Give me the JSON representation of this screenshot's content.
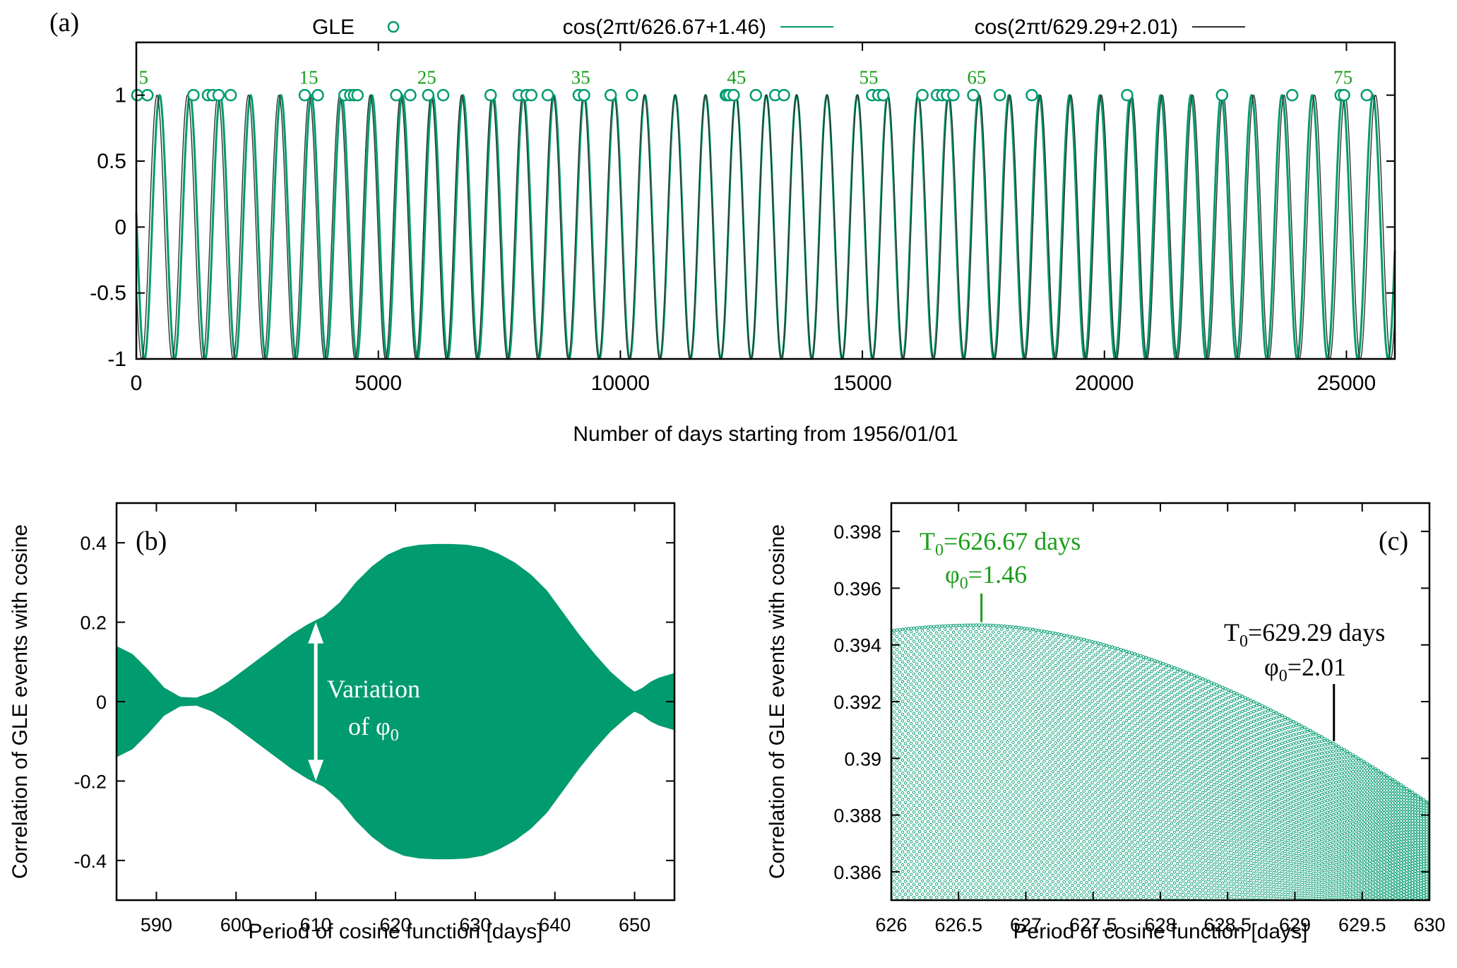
{
  "colors": {
    "green": "#009B6E",
    "dark": "#2f2f2f",
    "label_green": "#1a9e1a",
    "axis": "#000000"
  },
  "chart_data": [
    {
      "id": "a",
      "type": "line",
      "panel_label": "(a)",
      "xlabel": "Number of days starting from 1956/01/01",
      "ylabel": "",
      "xlim": [
        0,
        26000
      ],
      "ylim": [
        -1,
        1.4
      ],
      "xticks": [
        0,
        5000,
        10000,
        15000,
        20000,
        25000
      ],
      "xtick_labels": [
        "0",
        "5000",
        "10000",
        "15000",
        "20000",
        "25000"
      ],
      "yticks": [
        -1,
        -0.5,
        0,
        0.5,
        1
      ],
      "ytick_labels": [
        "-1",
        "-0.5",
        "0",
        "0.5",
        "1"
      ],
      "legend": [
        {
          "label": "GLE",
          "marker": "circle",
          "color": "#009B6E"
        },
        {
          "label": "cos(2πt/626.67+1.46)",
          "color": "#009B6E"
        },
        {
          "label": "cos(2πt/629.29+2.01)",
          "color": "#2f2f2f"
        }
      ],
      "series": [
        {
          "name": "cos(2πt/626.67+1.46)",
          "period": 626.67,
          "phase": 1.46
        },
        {
          "name": "cos(2πt/629.29+2.01)",
          "period": 629.29,
          "phase": 2.01
        }
      ],
      "gle_events": [
        20,
        230,
        1180,
        1480,
        1580,
        1700,
        1950,
        3480,
        3750,
        4300,
        4420,
        4500,
        4570,
        5370,
        5660,
        6030,
        6340,
        7320,
        7900,
        8060,
        8160,
        8500,
        9140,
        9250,
        9800,
        10240,
        12180,
        12200,
        12250,
        12340,
        12800,
        13200,
        13380,
        15200,
        15330,
        15430,
        16240,
        16540,
        16650,
        16750,
        16880,
        17290,
        17840,
        18500,
        20470,
        22430,
        23880,
        24880,
        24950,
        25420
      ],
      "event_labels": [
        {
          "text": "5",
          "x": 150
        },
        {
          "text": "15",
          "x": 3560
        },
        {
          "text": "25",
          "x": 6000
        },
        {
          "text": "35",
          "x": 9180
        },
        {
          "text": "45",
          "x": 12400
        },
        {
          "text": "55",
          "x": 15130
        },
        {
          "text": "65",
          "x": 17360
        },
        {
          "text": "75",
          "x": 24930
        }
      ]
    },
    {
      "id": "b",
      "type": "area",
      "panel_label": "(b)",
      "xlabel": "Period of cosine function [days]",
      "ylabel": "Correlation of GLE events with cosine",
      "xlim": [
        585,
        655
      ],
      "ylim": [
        -0.5,
        0.5
      ],
      "xticks": [
        590,
        600,
        610,
        620,
        630,
        640,
        650
      ],
      "xtick_labels": [
        "590",
        "600",
        "610",
        "620",
        "630",
        "640",
        "650"
      ],
      "yticks": [
        -0.4,
        -0.2,
        0,
        0.2,
        0.4
      ],
      "ytick_labels": [
        "-0.4",
        "-0.2",
        "0",
        "0.2",
        "0.4"
      ],
      "envelope_x": [
        585,
        587,
        589,
        591,
        593,
        595,
        597,
        599,
        601,
        603,
        605,
        607,
        609,
        610,
        611,
        613,
        615,
        617,
        619,
        621,
        623,
        625,
        627,
        629,
        631,
        633,
        635,
        637,
        639,
        641,
        643,
        645,
        647,
        649,
        650,
        651,
        652,
        653,
        655
      ],
      "envelope_y": [
        0.14,
        0.12,
        0.08,
        0.035,
        0.012,
        0.01,
        0.025,
        0.05,
        0.08,
        0.11,
        0.14,
        0.17,
        0.195,
        0.205,
        0.215,
        0.25,
        0.3,
        0.34,
        0.37,
        0.388,
        0.395,
        0.397,
        0.397,
        0.395,
        0.388,
        0.372,
        0.35,
        0.32,
        0.28,
        0.225,
        0.17,
        0.12,
        0.075,
        0.04,
        0.025,
        0.035,
        0.05,
        0.06,
        0.072
      ],
      "annotation": {
        "arrow_x": 610,
        "arrow_y1": 0.2,
        "arrow_y2": -0.2,
        "line1": "Variation",
        "line2": "of φ",
        "sub": "0"
      }
    },
    {
      "id": "c",
      "type": "scatter",
      "panel_label": "(c)",
      "xlabel": "Period of cosine function [days]",
      "ylabel": "Correlation of GLE events with cosine",
      "xlim": [
        626,
        630
      ],
      "ylim": [
        0.385,
        0.399
      ],
      "xticks": [
        626,
        626.5,
        627,
        627.5,
        628,
        628.5,
        629,
        629.5,
        630
      ],
      "xtick_labels": [
        "626",
        "626.5",
        "627",
        "627.5",
        "628",
        "628.5",
        "629",
        "629.5",
        "630"
      ],
      "yticks": [
        0.386,
        0.388,
        0.39,
        0.392,
        0.394,
        0.396,
        0.398
      ],
      "ytick_labels": [
        "0.386",
        "0.388",
        "0.39",
        "0.392",
        "0.394",
        "0.396",
        "0.398"
      ],
      "envelope_peak": {
        "x": 626.67,
        "y": 0.3947
      },
      "envelope_start_y": 0.3945,
      "envelope_end_y": 0.3884,
      "annotation_green": {
        "t_main": "T",
        "t_sub": "0",
        "t_rest": "=626.67 days",
        "p_main": "φ",
        "p_sub": "0",
        "p_rest": "=1.46",
        "x": 626.67
      },
      "annotation_black": {
        "t_main": "T",
        "t_sub": "0",
        "t_rest": "=629.29 days",
        "p_main": "φ",
        "p_sub": "0",
        "p_rest": "=2.01",
        "x": 629.29
      }
    }
  ]
}
